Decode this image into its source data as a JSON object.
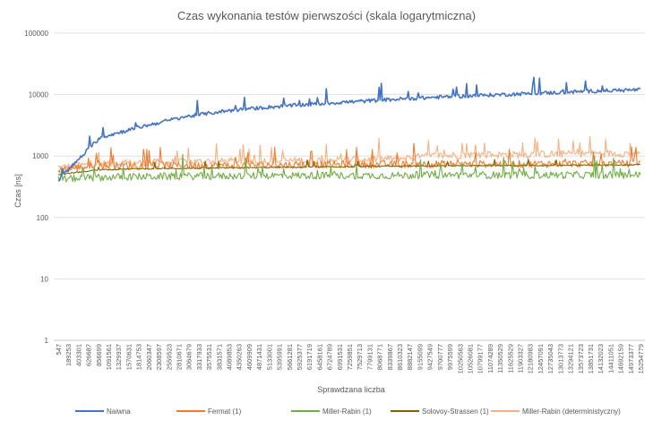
{
  "chart_data": {
    "type": "line",
    "title": "Czas wykonania testów pierwszości (skala logarytmiczna)",
    "xlabel": "Sprawdzana liczba",
    "ylabel": "Czas [ns]",
    "yscale": "log",
    "ylim": [
      1,
      100000
    ],
    "y_ticks": [
      1,
      10,
      100,
      1000,
      10000,
      100000
    ],
    "y_tick_labels": [
      "1",
      "10",
      "100",
      "1000",
      "10000",
      "100000"
    ],
    "x_tick_labels": [
      "547",
      "189253",
      "403301",
      "626687",
      "856699",
      "1091561",
      "1329937",
      "1570631",
      "1814753",
      "2060347",
      "2308597",
      "2559523",
      "2810671",
      "3064679",
      "3317933",
      "3575531",
      "3831571",
      "4089853",
      "4350263",
      "4609909",
      "4871431",
      "5133001",
      "5395991",
      "5661281",
      "5925377",
      "6191719",
      "6458161",
      "6724789",
      "6991531",
      "7259851",
      "7529713",
      "7799131",
      "8068771",
      "8339867",
      "8610323",
      "8882147",
      "9155099",
      "9427549",
      "9700777",
      "9975599",
      "10250563",
      "10526081",
      "10799177",
      "11074289",
      "11350529",
      "11625529",
      "11903327",
      "12180983",
      "12457091",
      "12735043",
      "13013773",
      "13294121",
      "13573723",
      "13851731",
      "14132023",
      "14411051",
      "14692159",
      "14973377",
      "15254779"
    ],
    "legend_position": "bottom",
    "series": [
      {
        "name": "Naiwna",
        "color": "#4472c4",
        "approx_values": [
          400,
          2000,
          3000,
          4300,
          5400,
          6200,
          6900,
          7600,
          8300,
          9000,
          9600,
          10200,
          10800,
          11500,
          12000
        ]
      },
      {
        "name": "Fermat (1)",
        "color": "#ed7d31",
        "approx_values": [
          600,
          700,
          700,
          700,
          700,
          720,
          720,
          730,
          730,
          740,
          740,
          740,
          750,
          750,
          750
        ]
      },
      {
        "name": "Miller-Rabin (1)",
        "color": "#70ad47",
        "approx_values": [
          420,
          450,
          460,
          470,
          470,
          480,
          480,
          480,
          480,
          490,
          490,
          490,
          490,
          490,
          490
        ]
      },
      {
        "name": "Solovoy-Strassen (1)",
        "color": "#806000",
        "approx_values": [
          500,
          600,
          620,
          630,
          640,
          650,
          660,
          670,
          680,
          690,
          700,
          700,
          710,
          710,
          720
        ]
      },
      {
        "name": "Miller-Rabin (deterministyczny)",
        "color": "#f4b183",
        "approx_values": [
          650,
          750,
          780,
          800,
          820,
          830,
          850,
          870,
          900,
          1000,
          1050,
          1050,
          1080,
          1100,
          1100
        ]
      }
    ]
  }
}
